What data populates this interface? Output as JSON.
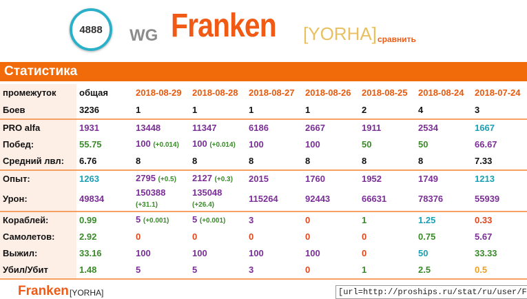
{
  "header": {
    "badge": "4888",
    "server": "WG",
    "name": "Franken",
    "clan": "[YORHA]",
    "compare": "сравнить"
  },
  "section_title": "Статистика",
  "table": {
    "header": [
      "промежуток",
      "общая",
      "2018-08-29",
      "2018-08-28",
      "2018-08-27",
      "2018-08-26",
      "2018-08-25",
      "2018-08-24",
      "2018-07-24"
    ],
    "groups": [
      {
        "rows": [
          {
            "label": "Боев",
            "cells": [
              {
                "text": "3236",
                "color": "#111111"
              },
              {
                "text": "1",
                "color": "#111111"
              },
              {
                "text": "1",
                "color": "#111111"
              },
              {
                "text": "1",
                "color": "#111111"
              },
              {
                "text": "1",
                "color": "#111111"
              },
              {
                "text": "2",
                "color": "#111111"
              },
              {
                "text": "4",
                "color": "#111111"
              },
              {
                "text": "3",
                "color": "#111111"
              }
            ]
          }
        ]
      },
      {
        "rows": [
          {
            "label": "PRO alfa",
            "cells": [
              {
                "text": "1931",
                "color": "#7a2e96"
              },
              {
                "text": "13448",
                "color": "#7a2e96"
              },
              {
                "text": "11347",
                "color": "#7a2e96"
              },
              {
                "text": "6186",
                "color": "#7a2e96"
              },
              {
                "text": "2667",
                "color": "#7a2e96"
              },
              {
                "text": "1911",
                "color": "#7a2e96"
              },
              {
                "text": "2534",
                "color": "#7a2e96"
              },
              {
                "text": "1667",
                "color": "#1a9fb3"
              }
            ]
          },
          {
            "label": "Побед:",
            "cells": [
              {
                "text": "55.75",
                "color": "#3a8a2a"
              },
              {
                "text": "100",
                "color": "#7a2e96",
                "delta": "(+0.014)"
              },
              {
                "text": "100",
                "color": "#7a2e96",
                "delta": "(+0.014)"
              },
              {
                "text": "100",
                "color": "#7a2e96"
              },
              {
                "text": "100",
                "color": "#7a2e96"
              },
              {
                "text": "50",
                "color": "#3a8a2a"
              },
              {
                "text": "50",
                "color": "#3a8a2a"
              },
              {
                "text": "66.67",
                "color": "#7a2e96"
              }
            ]
          },
          {
            "label": "Средний лвл:",
            "cells": [
              {
                "text": "6.76",
                "color": "#111111"
              },
              {
                "text": "8",
                "color": "#111111"
              },
              {
                "text": "8",
                "color": "#111111"
              },
              {
                "text": "8",
                "color": "#111111"
              },
              {
                "text": "8",
                "color": "#111111"
              },
              {
                "text": "8",
                "color": "#111111"
              },
              {
                "text": "8",
                "color": "#111111"
              },
              {
                "text": "7.33",
                "color": "#111111"
              }
            ]
          }
        ]
      },
      {
        "rows": [
          {
            "label": "Опыт:",
            "cells": [
              {
                "text": "1263",
                "color": "#1a9fb3"
              },
              {
                "text": "2795",
                "color": "#7a2e96",
                "delta": "(+0.5)"
              },
              {
                "text": "2127",
                "color": "#7a2e96",
                "delta": "(+0.3)"
              },
              {
                "text": "2015",
                "color": "#7a2e96"
              },
              {
                "text": "1760",
                "color": "#7a2e96"
              },
              {
                "text": "1952",
                "color": "#7a2e96"
              },
              {
                "text": "1749",
                "color": "#7a2e96"
              },
              {
                "text": "1213",
                "color": "#1a9fb3"
              }
            ]
          },
          {
            "label": "Урон:",
            "cells": [
              {
                "text": "49834",
                "color": "#7a2e96"
              },
              {
                "text": "150388",
                "color": "#7a2e96",
                "delta": "(+31.1)"
              },
              {
                "text": "135048",
                "color": "#7a2e96",
                "delta": "(+26.4)"
              },
              {
                "text": "115264",
                "color": "#7a2e96"
              },
              {
                "text": "92443",
                "color": "#7a2e96"
              },
              {
                "text": "66631",
                "color": "#7a2e96"
              },
              {
                "text": "78376",
                "color": "#7a2e96"
              },
              {
                "text": "55939",
                "color": "#7a2e96"
              }
            ]
          }
        ]
      },
      {
        "rows": [
          {
            "label": "Кораблей:",
            "cells": [
              {
                "text": "0.99",
                "color": "#3a8a2a"
              },
              {
                "text": "5",
                "color": "#7a2e96",
                "delta": "(+0.001)"
              },
              {
                "text": "5",
                "color": "#7a2e96",
                "delta": "(+0.001)"
              },
              {
                "text": "3",
                "color": "#7a2e96"
              },
              {
                "text": "0",
                "color": "#e0461c"
              },
              {
                "text": "1",
                "color": "#3a8a2a"
              },
              {
                "text": "1.25",
                "color": "#1a9fb3"
              },
              {
                "text": "0.33",
                "color": "#e0461c"
              }
            ]
          },
          {
            "label": "Самолетов:",
            "cells": [
              {
                "text": "2.92",
                "color": "#3a8a2a"
              },
              {
                "text": "0",
                "color": "#e0461c"
              },
              {
                "text": "0",
                "color": "#e0461c"
              },
              {
                "text": "0",
                "color": "#e0461c"
              },
              {
                "text": "0",
                "color": "#e0461c"
              },
              {
                "text": "0",
                "color": "#e0461c"
              },
              {
                "text": "0.75",
                "color": "#3a8a2a"
              },
              {
                "text": "5.67",
                "color": "#7a2e96"
              }
            ]
          },
          {
            "label": "Выжил:",
            "cells": [
              {
                "text": "33.16",
                "color": "#3a8a2a"
              },
              {
                "text": "100",
                "color": "#7a2e96"
              },
              {
                "text": "100",
                "color": "#7a2e96"
              },
              {
                "text": "100",
                "color": "#7a2e96"
              },
              {
                "text": "100",
                "color": "#7a2e96"
              },
              {
                "text": "0",
                "color": "#e0461c"
              },
              {
                "text": "50",
                "color": "#1a9fb3"
              },
              {
                "text": "33.33",
                "color": "#3a8a2a"
              }
            ]
          },
          {
            "label": "Убил/Убит",
            "cells": [
              {
                "text": "1.48",
                "color": "#3a8a2a"
              },
              {
                "text": "5",
                "color": "#7a2e96"
              },
              {
                "text": "5",
                "color": "#7a2e96"
              },
              {
                "text": "3",
                "color": "#7a2e96"
              },
              {
                "text": "0",
                "color": "#e0461c"
              },
              {
                "text": "1",
                "color": "#3a8a2a"
              },
              {
                "text": "2.5",
                "color": "#3a8a2a"
              },
              {
                "text": "0.5",
                "color": "#f0a020"
              }
            ]
          }
        ]
      }
    ]
  },
  "footer": {
    "name": "Franken",
    "clan": "[YORHA]",
    "bbcode": "[url=http://proships.ru/stat/ru/user/F"
  }
}
